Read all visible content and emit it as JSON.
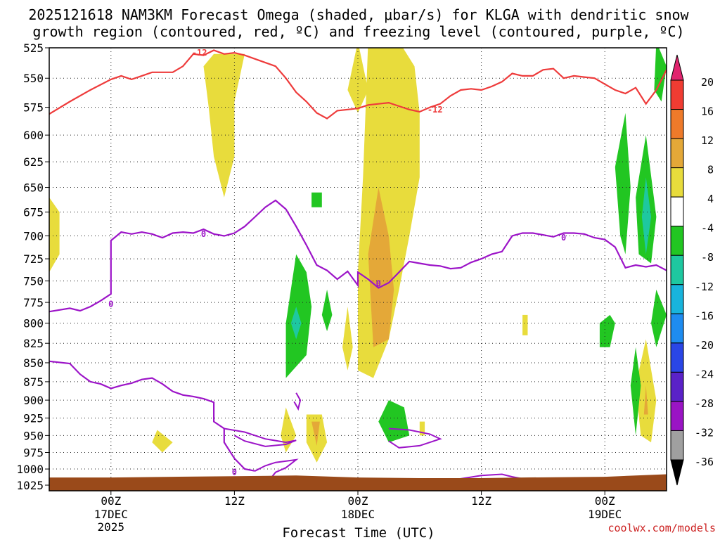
{
  "chart_data": {
    "type": "heatmap",
    "title_line1": "2025121618 NAM3KM Forecast Omega (shaded, μbar/s) for KLGA with dendritic snow",
    "title_line2": "growth region (contoured, red, ºC) and freezing level (contoured, purple, ºC)",
    "xlabel": "Forecast Time (UTC)",
    "credit": "coolwx.com/models",
    "y_axis": {
      "unit": "hPa",
      "ticks": [
        525,
        550,
        575,
        600,
        625,
        650,
        675,
        700,
        725,
        750,
        775,
        800,
        825,
        850,
        875,
        900,
        925,
        950,
        975,
        1000,
        1025
      ]
    },
    "x_axis": {
      "unit": "forecast hour",
      "range": [
        -6,
        54
      ],
      "ticks": [
        {
          "hour": 0,
          "line1": "00Z",
          "line2": "17DEC",
          "line3": "2025"
        },
        {
          "hour": 12,
          "line1": "12Z",
          "line2": "",
          "line3": ""
        },
        {
          "hour": 24,
          "line1": "00Z",
          "line2": "18DEC",
          "line3": ""
        },
        {
          "hour": 36,
          "line1": "12Z",
          "line2": "",
          "line3": ""
        },
        {
          "hour": 48,
          "line1": "00Z",
          "line2": "19DEC",
          "line3": ""
        }
      ]
    },
    "colorbar": {
      "labels": [
        "20",
        "16",
        "12",
        "8",
        "4",
        "-4",
        "-8",
        "-12",
        "-16",
        "-20",
        "-24",
        "-28",
        "-32",
        "-36"
      ],
      "bins": [
        {
          "color": "#e0246e"
        },
        {
          "color": "#f03c32"
        },
        {
          "color": "#ee7a2a"
        },
        {
          "color": "#e4a838"
        },
        {
          "color": "#e8dc3c"
        },
        {
          "color": "#ffffff"
        },
        {
          "color": "#22c622"
        },
        {
          "color": "#1ec8a0"
        },
        {
          "color": "#18b4dc"
        },
        {
          "color": "#1e8cf0"
        },
        {
          "color": "#2a46e6"
        },
        {
          "color": "#5a22c8"
        },
        {
          "color": "#9a14c4"
        },
        {
          "color": "#a0a0a0"
        },
        {
          "color": "#000000"
        }
      ]
    },
    "dgz_contour": {
      "level": -12,
      "label": "-12",
      "color": "#ee3b3b",
      "points": [
        [
          -6,
          581
        ],
        [
          -4,
          570
        ],
        [
          -2,
          560
        ],
        [
          0,
          551
        ],
        [
          1,
          548
        ],
        [
          2,
          551
        ],
        [
          3,
          548
        ],
        [
          4,
          545
        ],
        [
          6,
          545
        ],
        [
          7,
          540
        ],
        [
          8,
          530
        ],
        [
          9,
          531
        ],
        [
          10,
          527
        ],
        [
          11,
          530
        ],
        [
          12,
          529
        ],
        [
          13,
          531
        ],
        [
          14,
          534
        ],
        [
          16,
          540
        ],
        [
          17,
          550
        ],
        [
          18,
          562
        ],
        [
          19,
          570
        ],
        [
          20,
          580
        ],
        [
          21,
          585
        ],
        [
          22,
          578
        ],
        [
          23,
          577
        ],
        [
          24,
          576
        ],
        [
          25,
          573
        ],
        [
          26,
          572
        ],
        [
          27,
          571
        ],
        [
          28,
          574
        ],
        [
          29,
          577
        ],
        [
          30,
          579
        ],
        [
          31,
          575
        ],
        [
          32,
          572
        ],
        [
          33,
          565
        ],
        [
          34,
          560
        ],
        [
          35,
          559
        ],
        [
          36,
          560
        ],
        [
          37,
          557
        ],
        [
          38,
          553
        ],
        [
          39,
          546
        ],
        [
          40,
          548
        ],
        [
          41,
          548
        ],
        [
          42,
          543
        ],
        [
          43,
          542
        ],
        [
          44,
          550
        ],
        [
          45,
          548
        ],
        [
          46,
          549
        ],
        [
          47,
          550
        ],
        [
          48,
          555
        ],
        [
          49,
          560
        ],
        [
          50,
          563
        ],
        [
          51,
          558
        ],
        [
          52,
          572
        ],
        [
          53,
          560
        ],
        [
          54,
          543
        ]
      ]
    },
    "freezing_contour": {
      "level": 0,
      "label": "0",
      "color": "#9c14c8",
      "main_points": [
        [
          -6,
          786
        ],
        [
          -4,
          782
        ],
        [
          -3,
          785
        ],
        [
          -2,
          780
        ],
        [
          -1,
          773
        ],
        [
          0,
          765
        ],
        [
          0,
          735
        ],
        [
          0,
          705
        ],
        [
          1,
          696
        ],
        [
          2,
          698
        ],
        [
          3,
          696
        ],
        [
          4,
          698
        ],
        [
          5,
          702
        ],
        [
          6,
          697
        ],
        [
          7,
          696
        ],
        [
          8,
          697
        ],
        [
          9,
          693
        ],
        [
          10,
          698
        ],
        [
          11,
          700
        ],
        [
          12,
          697
        ],
        [
          13,
          690
        ],
        [
          14,
          680
        ],
        [
          15,
          670
        ],
        [
          16,
          663
        ],
        [
          17,
          672
        ],
        [
          18,
          690
        ],
        [
          19,
          710
        ],
        [
          20,
          732
        ],
        [
          21,
          738
        ],
        [
          22,
          748
        ],
        [
          23,
          739
        ],
        [
          24,
          755
        ],
        [
          24,
          740
        ],
        [
          25,
          748
        ],
        [
          26,
          758
        ],
        [
          27,
          752
        ],
        [
          28,
          740
        ],
        [
          29,
          728
        ],
        [
          30,
          730
        ],
        [
          31,
          732
        ],
        [
          32,
          733
        ],
        [
          33,
          736
        ],
        [
          34,
          735
        ],
        [
          35,
          729
        ],
        [
          36,
          725
        ],
        [
          37,
          720
        ],
        [
          38,
          717
        ],
        [
          39,
          700
        ],
        [
          40,
          697
        ],
        [
          41,
          697
        ],
        [
          42,
          699
        ],
        [
          43,
          701
        ],
        [
          44,
          697
        ],
        [
          45,
          697
        ],
        [
          46,
          698
        ],
        [
          47,
          702
        ],
        [
          48,
          704
        ],
        [
          49,
          712
        ],
        [
          50,
          735
        ],
        [
          51,
          732
        ],
        [
          52,
          734
        ],
        [
          53,
          732
        ],
        [
          54,
          738
        ]
      ],
      "low_points": [
        [
          -6,
          848
        ],
        [
          -4,
          851
        ],
        [
          -3,
          865
        ],
        [
          -2,
          875
        ],
        [
          -1,
          878
        ],
        [
          0,
          884
        ],
        [
          1,
          880
        ],
        [
          2,
          877
        ],
        [
          3,
          872
        ],
        [
          4,
          870
        ],
        [
          5,
          878
        ],
        [
          6,
          888
        ],
        [
          7,
          893
        ],
        [
          8,
          895
        ],
        [
          9,
          898
        ],
        [
          10,
          903
        ],
        [
          10,
          912
        ],
        [
          10,
          930
        ],
        [
          11,
          940
        ],
        [
          11,
          960
        ],
        [
          12,
          984
        ],
        [
          13,
          1000
        ],
        [
          14,
          1003
        ]
      ],
      "labels": [
        [
          9,
          698
        ],
        [
          0,
          777
        ],
        [
          44,
          702
        ],
        [
          26,
          753
        ],
        [
          12,
          1005
        ]
      ]
    },
    "omega_regions": [
      {
        "color": "#e8dc3c",
        "points": [
          [
            -6,
            660
          ],
          [
            -5,
            675
          ],
          [
            -5,
            720
          ],
          [
            -6,
            740
          ]
        ]
      },
      {
        "color": "#e8dc3c",
        "points": [
          [
            9,
            540
          ],
          [
            9.5,
            575
          ],
          [
            10,
            620
          ],
          [
            11,
            660
          ],
          [
            12,
            620
          ],
          [
            12,
            570
          ],
          [
            13,
            530
          ],
          [
            10,
            530
          ]
        ]
      },
      {
        "color": "#e8dc3c",
        "points": [
          [
            24,
            520
          ],
          [
            23,
            560
          ],
          [
            24,
            580
          ],
          [
            25,
            560
          ]
        ]
      },
      {
        "color": "#e8dc3c",
        "points": [
          [
            25,
            520
          ],
          [
            24.5,
            640
          ],
          [
            24,
            740
          ],
          [
            24,
            860
          ],
          [
            25.5,
            870
          ],
          [
            27,
            820
          ],
          [
            28,
            760
          ],
          [
            29,
            700
          ],
          [
            30,
            640
          ],
          [
            30,
            580
          ],
          [
            29.5,
            540
          ],
          [
            28,
            520
          ]
        ]
      },
      {
        "color": "#e4a838",
        "points": [
          [
            26,
            650
          ],
          [
            25,
            720
          ],
          [
            25.5,
            830
          ],
          [
            27,
            820
          ],
          [
            27.5,
            760
          ],
          [
            27,
            700
          ]
        ]
      },
      {
        "color": "#e8dc3c",
        "points": [
          [
            4.5,
            942
          ],
          [
            4,
            960
          ],
          [
            5,
            975
          ],
          [
            6,
            960
          ]
        ]
      },
      {
        "color": "#e8dc3c",
        "points": [
          [
            17,
            910
          ],
          [
            16.5,
            950
          ],
          [
            17,
            975
          ],
          [
            18,
            950
          ]
        ]
      },
      {
        "color": "#e8dc3c",
        "points": [
          [
            19,
            920
          ],
          [
            19,
            960
          ],
          [
            20,
            990
          ],
          [
            21,
            960
          ],
          [
            20.5,
            920
          ]
        ]
      },
      {
        "color": "#e4a838",
        "points": [
          [
            19.5,
            930
          ],
          [
            20,
            965
          ],
          [
            20.3,
            930
          ]
        ]
      },
      {
        "color": "#e8dc3c",
        "points": [
          [
            23,
            780
          ],
          [
            22.5,
            830
          ],
          [
            23,
            860
          ],
          [
            23.5,
            830
          ]
        ]
      },
      {
        "color": "#e8dc3c",
        "points": [
          [
            30,
            930
          ],
          [
            30,
            950
          ],
          [
            30.5,
            950
          ],
          [
            30.5,
            930
          ]
        ]
      },
      {
        "color": "#e8dc3c",
        "points": [
          [
            40,
            790
          ],
          [
            40,
            815
          ],
          [
            40.5,
            815
          ],
          [
            40.5,
            790
          ]
        ]
      },
      {
        "color": "#e8dc3c",
        "points": [
          [
            52,
            820
          ],
          [
            51,
            880
          ],
          [
            51.5,
            950
          ],
          [
            52.5,
            960
          ],
          [
            53,
            900
          ]
        ]
      },
      {
        "color": "#e4a838",
        "points": [
          [
            52,
            880
          ],
          [
            51.8,
            920
          ],
          [
            52.2,
            920
          ]
        ]
      },
      {
        "color": "#22c622",
        "points": [
          [
            18,
            720
          ],
          [
            17,
            800
          ],
          [
            17,
            870
          ],
          [
            19,
            840
          ],
          [
            19.5,
            780
          ],
          [
            19,
            740
          ]
        ]
      },
      {
        "color": "#1ec8a0",
        "points": [
          [
            18,
            780
          ],
          [
            17.5,
            800
          ],
          [
            18,
            820
          ],
          [
            18.5,
            800
          ]
        ]
      },
      {
        "color": "#22c622",
        "points": [
          [
            21,
            760
          ],
          [
            20.5,
            790
          ],
          [
            21,
            810
          ],
          [
            21.5,
            790
          ]
        ]
      },
      {
        "color": "#22c622",
        "points": [
          [
            19.5,
            655
          ],
          [
            19.5,
            670
          ],
          [
            20.5,
            670
          ],
          [
            20.5,
            655
          ]
        ]
      },
      {
        "color": "#22c622",
        "points": [
          [
            27,
            900
          ],
          [
            26,
            930
          ],
          [
            27,
            960
          ],
          [
            29,
            950
          ],
          [
            28.5,
            910
          ]
        ]
      },
      {
        "color": "#22c622",
        "points": [
          [
            48.5,
            790
          ],
          [
            47.5,
            800
          ],
          [
            47.5,
            830
          ],
          [
            48.5,
            830
          ],
          [
            49,
            800
          ]
        ]
      },
      {
        "color": "#22c622",
        "points": [
          [
            50,
            580
          ],
          [
            49,
            630
          ],
          [
            49.5,
            700
          ],
          [
            50,
            720
          ],
          [
            50.5,
            650
          ]
        ]
      },
      {
        "color": "#22c622",
        "points": [
          [
            52,
            600
          ],
          [
            51,
            660
          ],
          [
            51.3,
            720
          ],
          [
            52.5,
            730
          ],
          [
            53,
            680
          ]
        ]
      },
      {
        "color": "#1ec8a0",
        "points": [
          [
            52,
            640
          ],
          [
            51.6,
            680
          ],
          [
            52,
            720
          ],
          [
            52.5,
            680
          ]
        ]
      },
      {
        "color": "#22c622",
        "points": [
          [
            53,
            520
          ],
          [
            52.8,
            560
          ],
          [
            53.5,
            570
          ],
          [
            54,
            540
          ]
        ]
      },
      {
        "color": "#22c622",
        "points": [
          [
            53,
            760
          ],
          [
            52.5,
            800
          ],
          [
            53,
            830
          ],
          [
            54,
            790
          ]
        ]
      },
      {
        "color": "#22c622",
        "points": [
          [
            51,
            830
          ],
          [
            50.5,
            880
          ],
          [
            51,
            950
          ],
          [
            51.5,
            880
          ]
        ]
      }
    ]
  }
}
